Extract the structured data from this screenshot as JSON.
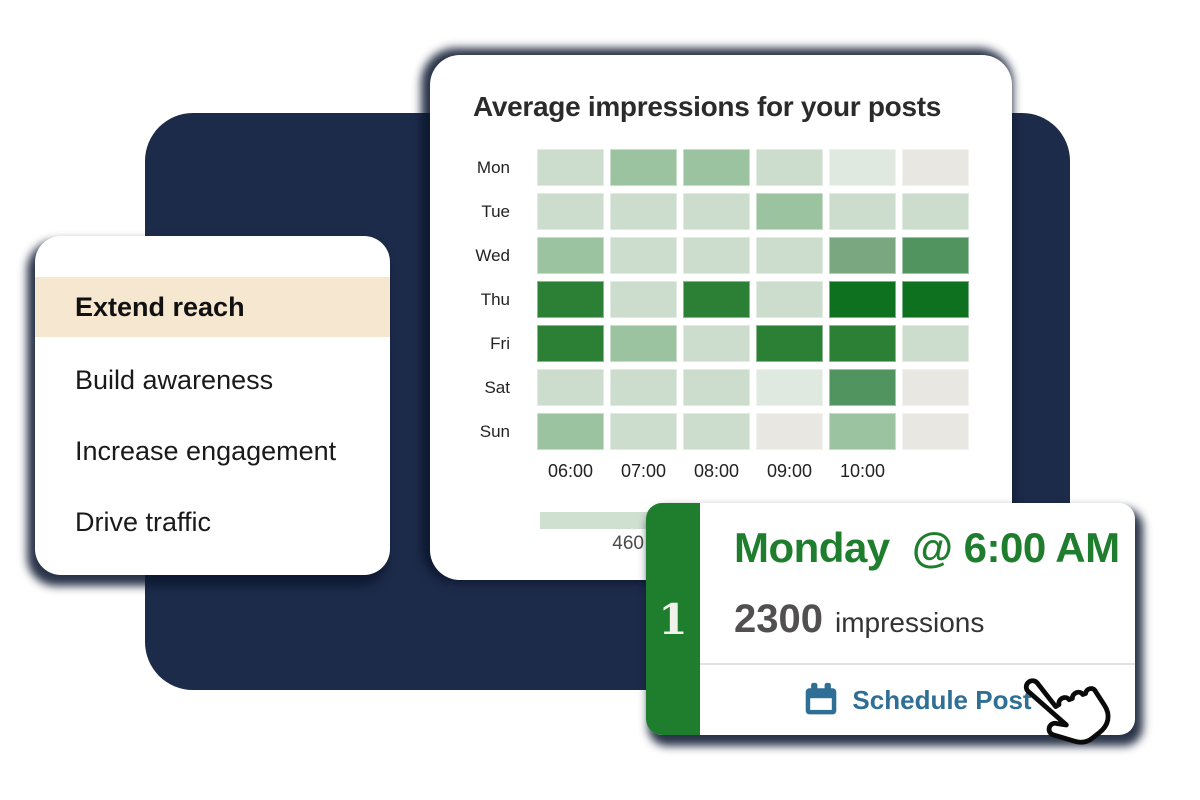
{
  "colors": {
    "panel_navy": "#1d2b4a",
    "card_white": "#ffffff",
    "shadow_navy": "#0d1830",
    "active_item_beige": "#f6e7d1",
    "accent_green": "#1e7e2d",
    "action_blue": "#2f6f96",
    "legend_bar_green": "#cfdfd0"
  },
  "goal_menu": {
    "items": [
      {
        "label": "Extend reach",
        "active": true
      },
      {
        "label": "Build awareness",
        "active": false
      },
      {
        "label": "Increase engagement",
        "active": false
      },
      {
        "label": "Drive traffic",
        "active": false
      }
    ]
  },
  "heatmap_card": {
    "title": "Average impressions for your posts",
    "days": [
      "Mon",
      "Tue",
      "Wed",
      "Thu",
      "Fri",
      "Sat",
      "Sun"
    ],
    "times": [
      "06:00",
      "07:00",
      "08:00",
      "09:00",
      "10:00",
      ""
    ],
    "legend_value": "460",
    "palette": [
      "#e9e7e2",
      "#dfe9df",
      "#ccdccd",
      "#9cc3a0",
      "#7aa680",
      "#529460",
      "#2b8036",
      "#0e7120"
    ],
    "levels": [
      [
        2,
        3,
        3,
        2,
        1,
        0
      ],
      [
        2,
        2,
        2,
        3,
        2,
        2
      ],
      [
        3,
        2,
        2,
        2,
        4,
        5
      ],
      [
        6,
        2,
        6,
        2,
        7,
        7
      ],
      [
        6,
        3,
        2,
        6,
        6,
        2
      ],
      [
        2,
        2,
        2,
        1,
        5,
        0
      ],
      [
        3,
        2,
        2,
        0,
        3,
        0
      ]
    ]
  },
  "schedule_card": {
    "rank": "1",
    "slot": "Monday  @ 6:00 AM",
    "metric_value": "2300",
    "metric_label": "impressions",
    "action": "Schedule Post"
  },
  "icons": {
    "action_icon": "calendar-icon",
    "cursor_icon": "hand-pointer-icon"
  },
  "chart_data": {
    "type": "heatmap",
    "title": "Average impressions for your posts",
    "rows": [
      "Mon",
      "Tue",
      "Wed",
      "Thu",
      "Fri",
      "Sat",
      "Sun"
    ],
    "columns": [
      "06:00",
      "07:00",
      "08:00",
      "09:00",
      "10:00",
      ""
    ],
    "value_scale": "relative intensity 0 (lowest/gray) to 7 (highest/dark green)",
    "values": [
      [
        2,
        3,
        3,
        2,
        1,
        0
      ],
      [
        2,
        2,
        2,
        3,
        2,
        2
      ],
      [
        3,
        2,
        2,
        2,
        4,
        5
      ],
      [
        6,
        2,
        6,
        2,
        7,
        7
      ],
      [
        6,
        3,
        2,
        6,
        6,
        2
      ],
      [
        2,
        2,
        2,
        1,
        5,
        0
      ],
      [
        3,
        2,
        2,
        0,
        3,
        0
      ]
    ],
    "legend": {
      "visible_label": "460",
      "position": "bottom-left, partially hidden behind schedule card"
    },
    "highlight": {
      "rank": 1,
      "slot": "Monday @ 6:00 AM",
      "impressions": 2300
    }
  }
}
